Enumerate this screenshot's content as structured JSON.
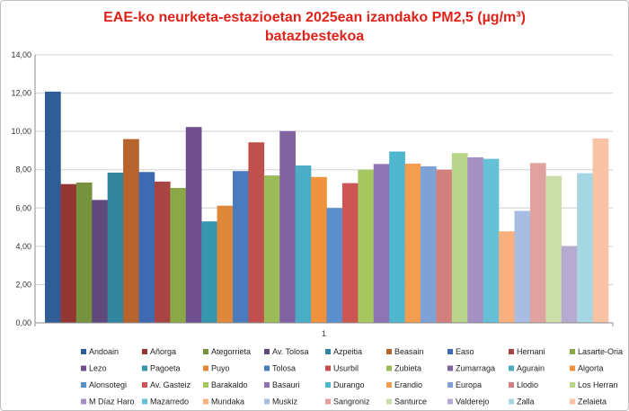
{
  "chart_data": {
    "type": "bar",
    "title_line1": "EAE-ko neurketa-estazioetan 2025ean izandako PM2,5 (µg/m³)",
    "title_line2": "batazbestekoa",
    "categories": [
      "1"
    ],
    "ylim": [
      0,
      14
    ],
    "yticks": [
      "0,00",
      "2,00",
      "4,00",
      "6,00",
      "8,00",
      "10,00",
      "12,00",
      "14,00"
    ],
    "grid": true,
    "legend_position": "bottom",
    "series": [
      {
        "name": "Andoain",
        "value": 12.08,
        "color": "#2f5d96"
      },
      {
        "name": "Añorga",
        "value": 7.25,
        "color": "#943634"
      },
      {
        "name": "Ategorrieta",
        "value": 7.33,
        "color": "#76923c"
      },
      {
        "name": "Av. Tolosa",
        "value": 6.42,
        "color": "#5f497a"
      },
      {
        "name": "Azpeitia",
        "value": 7.85,
        "color": "#31859c"
      },
      {
        "name": "Beasain",
        "value": 9.6,
        "color": "#b7632c"
      },
      {
        "name": "Easo",
        "value": 7.88,
        "color": "#3d6ab0"
      },
      {
        "name": "Hernani",
        "value": 7.38,
        "color": "#a84442"
      },
      {
        "name": "Lasarte-Oria",
        "value": 7.05,
        "color": "#8ba849"
      },
      {
        "name": "Lezo",
        "value": 10.23,
        "color": "#704f8f"
      },
      {
        "name": "Pagoeta",
        "value": 5.3,
        "color": "#3596ac"
      },
      {
        "name": "Puyo",
        "value": 6.12,
        "color": "#e0883a"
      },
      {
        "name": "Tolosa",
        "value": 7.93,
        "color": "#4a7bbd"
      },
      {
        "name": "Usurbil",
        "value": 9.43,
        "color": "#c0504d"
      },
      {
        "name": "Zubieta",
        "value": 7.7,
        "color": "#9bbb59"
      },
      {
        "name": "Zumarraga",
        "value": 10.02,
        "color": "#8064a2"
      },
      {
        "name": "Agurain",
        "value": 8.22,
        "color": "#4bacc6"
      },
      {
        "name": "Algorta",
        "value": 7.62,
        "color": "#f0923d"
      },
      {
        "name": "Alonsotegi",
        "value": 6.0,
        "color": "#5b8fcc"
      },
      {
        "name": "Av. Gasteiz",
        "value": 7.3,
        "color": "#cd5553"
      },
      {
        "name": "Barakaldo",
        "value": 8.0,
        "color": "#a6c660"
      },
      {
        "name": "Basauri",
        "value": 8.3,
        "color": "#8f74b4"
      },
      {
        "name": "Durango",
        "value": 8.95,
        "color": "#4fb6cf"
      },
      {
        "name": "Erandio",
        "value": 8.32,
        "color": "#f49d50"
      },
      {
        "name": "Europa",
        "value": 8.18,
        "color": "#7ea1d6"
      },
      {
        "name": "Llodio",
        "value": 8.0,
        "color": "#d27f7d"
      },
      {
        "name": "Los Herran",
        "value": 8.87,
        "color": "#b8d48a"
      },
      {
        "name": "M Díaz Haro",
        "value": 8.65,
        "color": "#a490c2"
      },
      {
        "name": "Mazarredo",
        "value": 8.57,
        "color": "#66c0d6"
      },
      {
        "name": "Mundaka",
        "value": 4.78,
        "color": "#f9b07e"
      },
      {
        "name": "Muskiz",
        "value": 5.85,
        "color": "#a9bce2"
      },
      {
        "name": "Sangroniz",
        "value": 8.35,
        "color": "#dfa2a0"
      },
      {
        "name": "Santurce",
        "value": 7.68,
        "color": "#cbdea9"
      },
      {
        "name": "Valderejo",
        "value": 4.0,
        "color": "#b7aad0"
      },
      {
        "name": "Zalla",
        "value": 7.82,
        "color": "#a7d6e3"
      },
      {
        "name": "Zelaieta",
        "value": 9.63,
        "color": "#f8c2a4"
      }
    ]
  }
}
